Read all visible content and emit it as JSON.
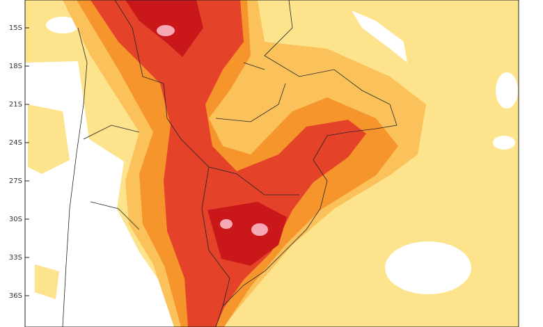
{
  "latitude_labels": [
    "15S",
    "18S",
    "21S",
    "24S",
    "27S",
    "30S",
    "33S",
    "36S"
  ]
}
